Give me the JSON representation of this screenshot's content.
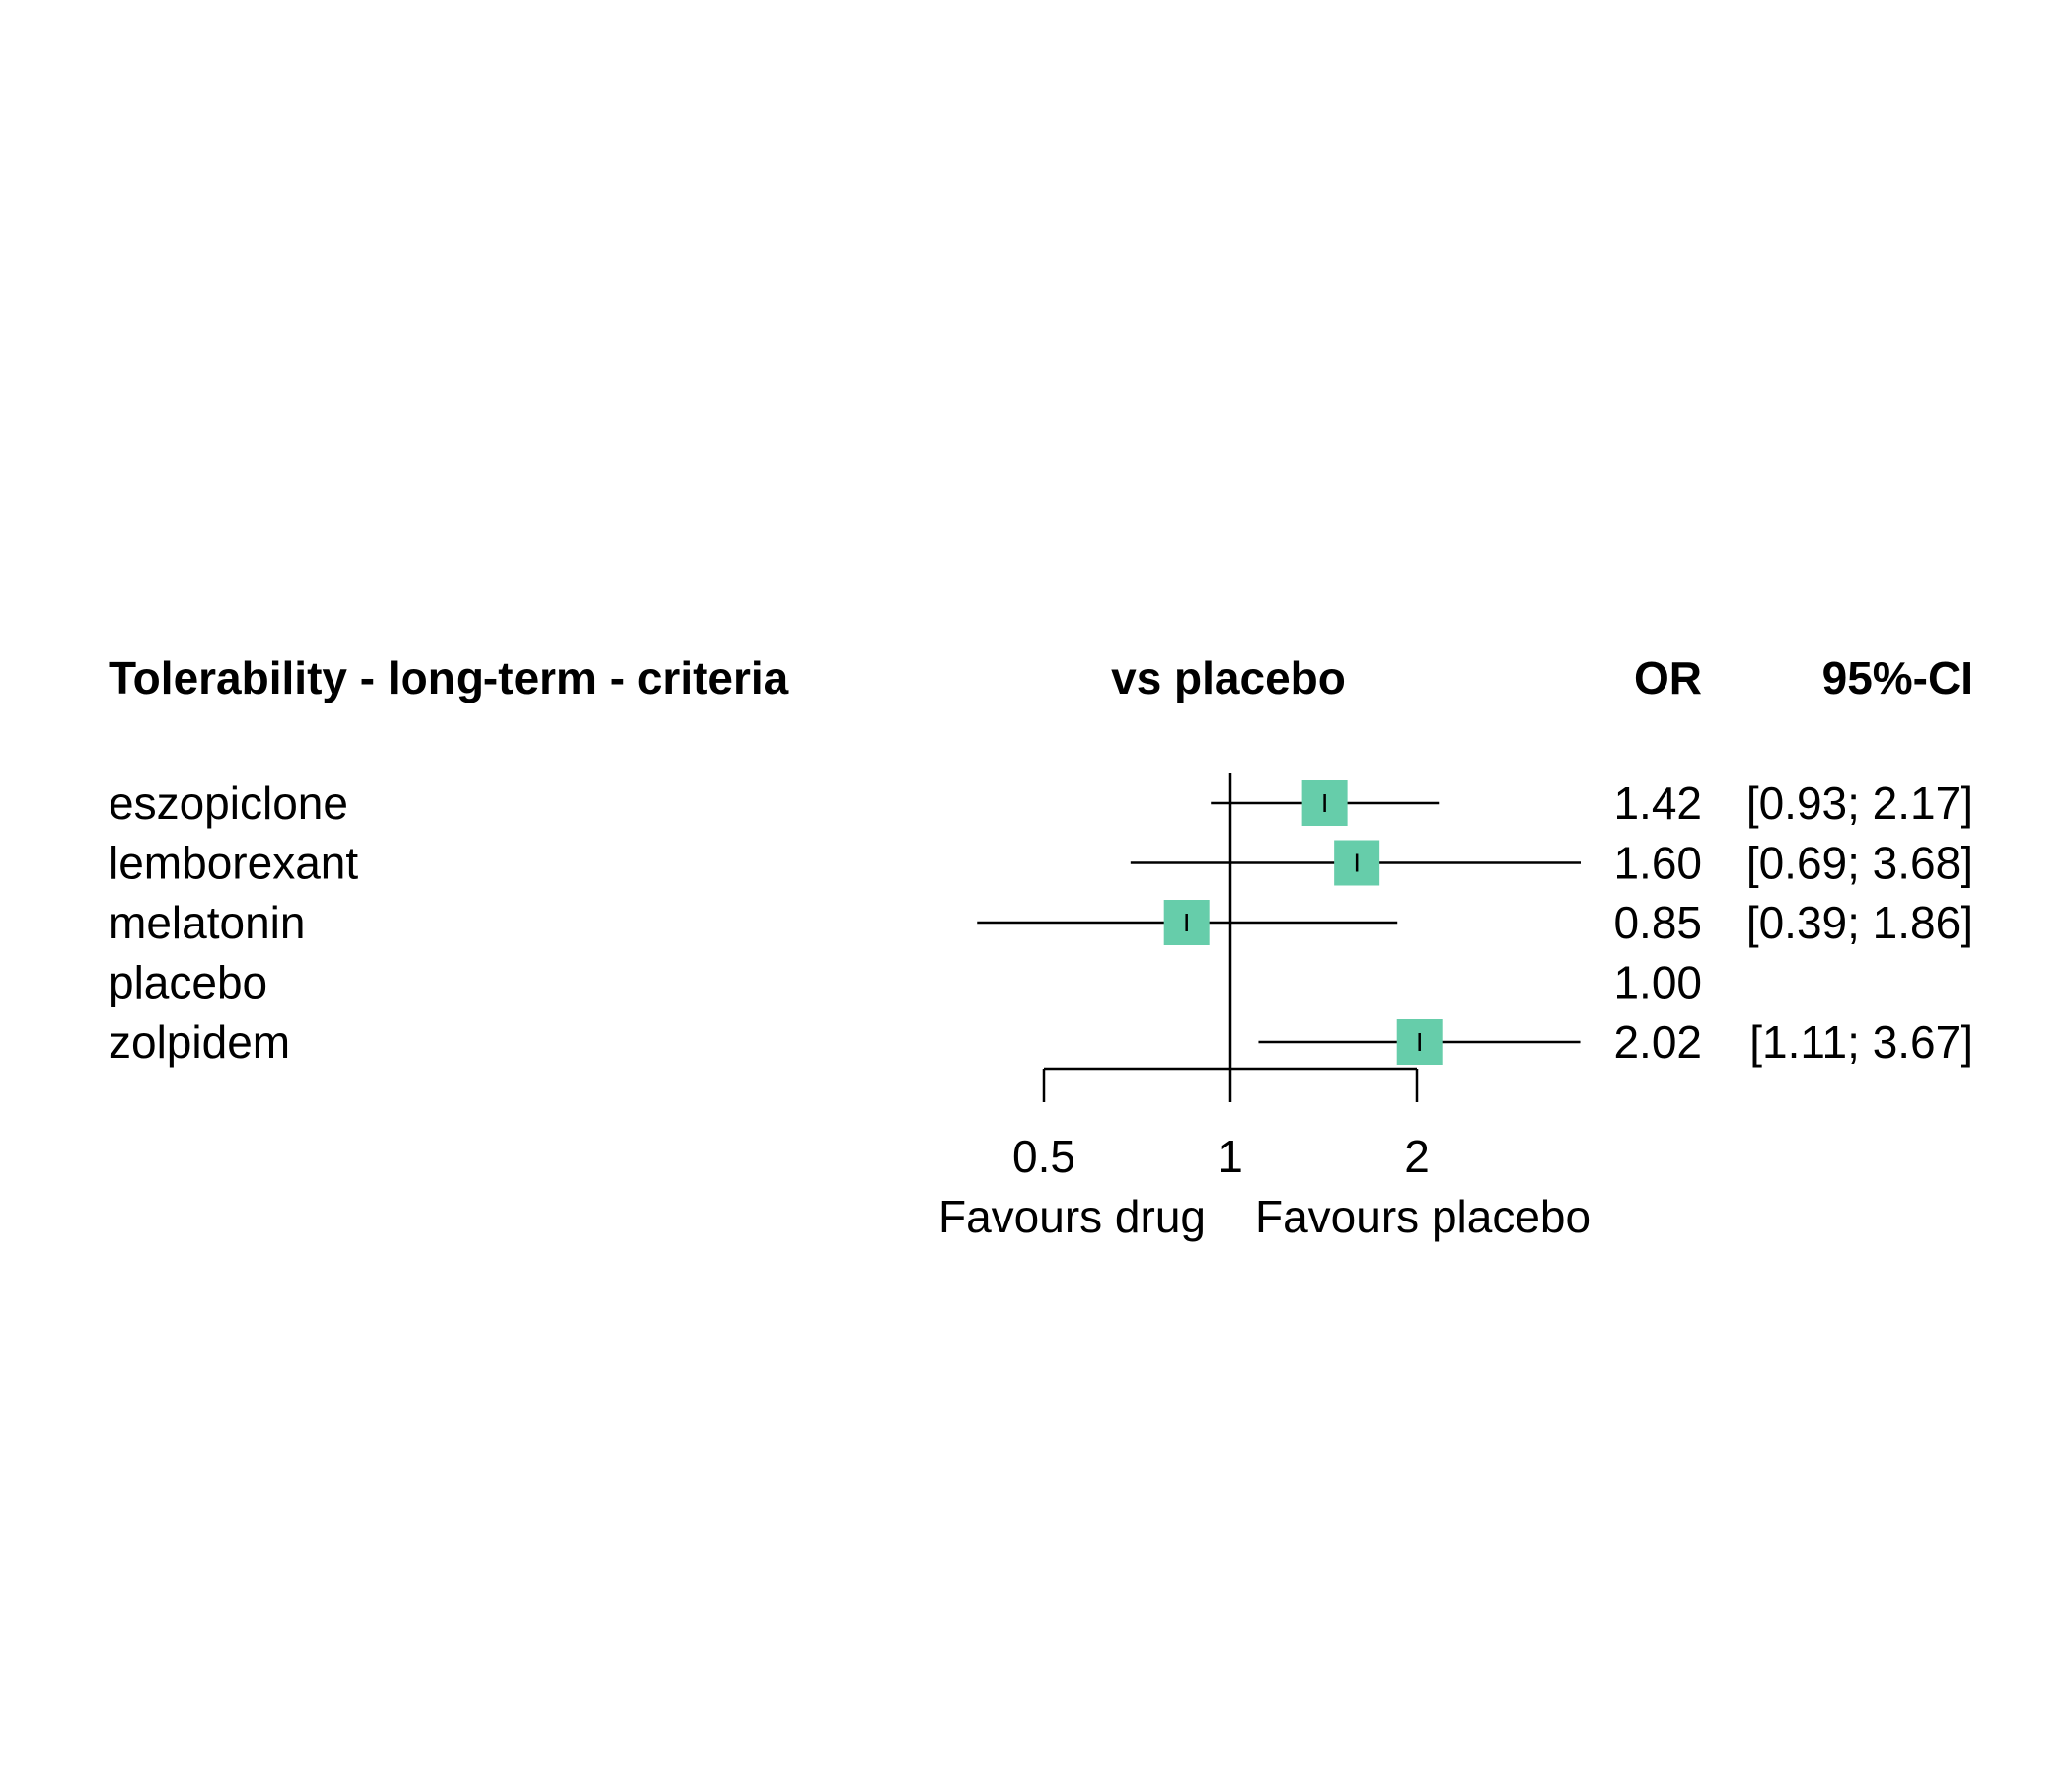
{
  "chart_data": {
    "type": "forest",
    "title": "Tolerability - long-term - criteria",
    "comparison_header": "vs placebo",
    "or_header": "OR",
    "ci_header": "95%-CI",
    "rows": [
      {
        "label": "eszopiclone",
        "or": 1.42,
        "lower": 0.93,
        "upper": 2.17,
        "or_text": "1.42",
        "ci_text": "[0.93; 2.17]"
      },
      {
        "label": "lemborexant",
        "or": 1.6,
        "lower": 0.69,
        "upper": 3.68,
        "or_text": "1.60",
        "ci_text": "[0.69; 3.68]"
      },
      {
        "label": "melatonin",
        "or": 0.85,
        "lower": 0.39,
        "upper": 1.86,
        "or_text": "0.85",
        "ci_text": "[0.39; 1.86]"
      },
      {
        "label": "placebo",
        "or": 1.0,
        "lower": null,
        "upper": null,
        "or_text": "1.00",
        "ci_text": ""
      },
      {
        "label": "zolpidem",
        "or": 2.02,
        "lower": 1.11,
        "upper": 3.67,
        "or_text": "2.02",
        "ci_text": "[1.11; 3.67]"
      }
    ],
    "x_scale": "log",
    "x_range": [
      0.5,
      2
    ],
    "x_ticks": [
      0.5,
      1,
      2
    ],
    "x_tick_labels": [
      "0.5",
      "1",
      "2"
    ],
    "reference_line": 1,
    "left_label": "Favours drug",
    "right_label": "Favours placebo",
    "marker_color": "#66CDAA"
  }
}
